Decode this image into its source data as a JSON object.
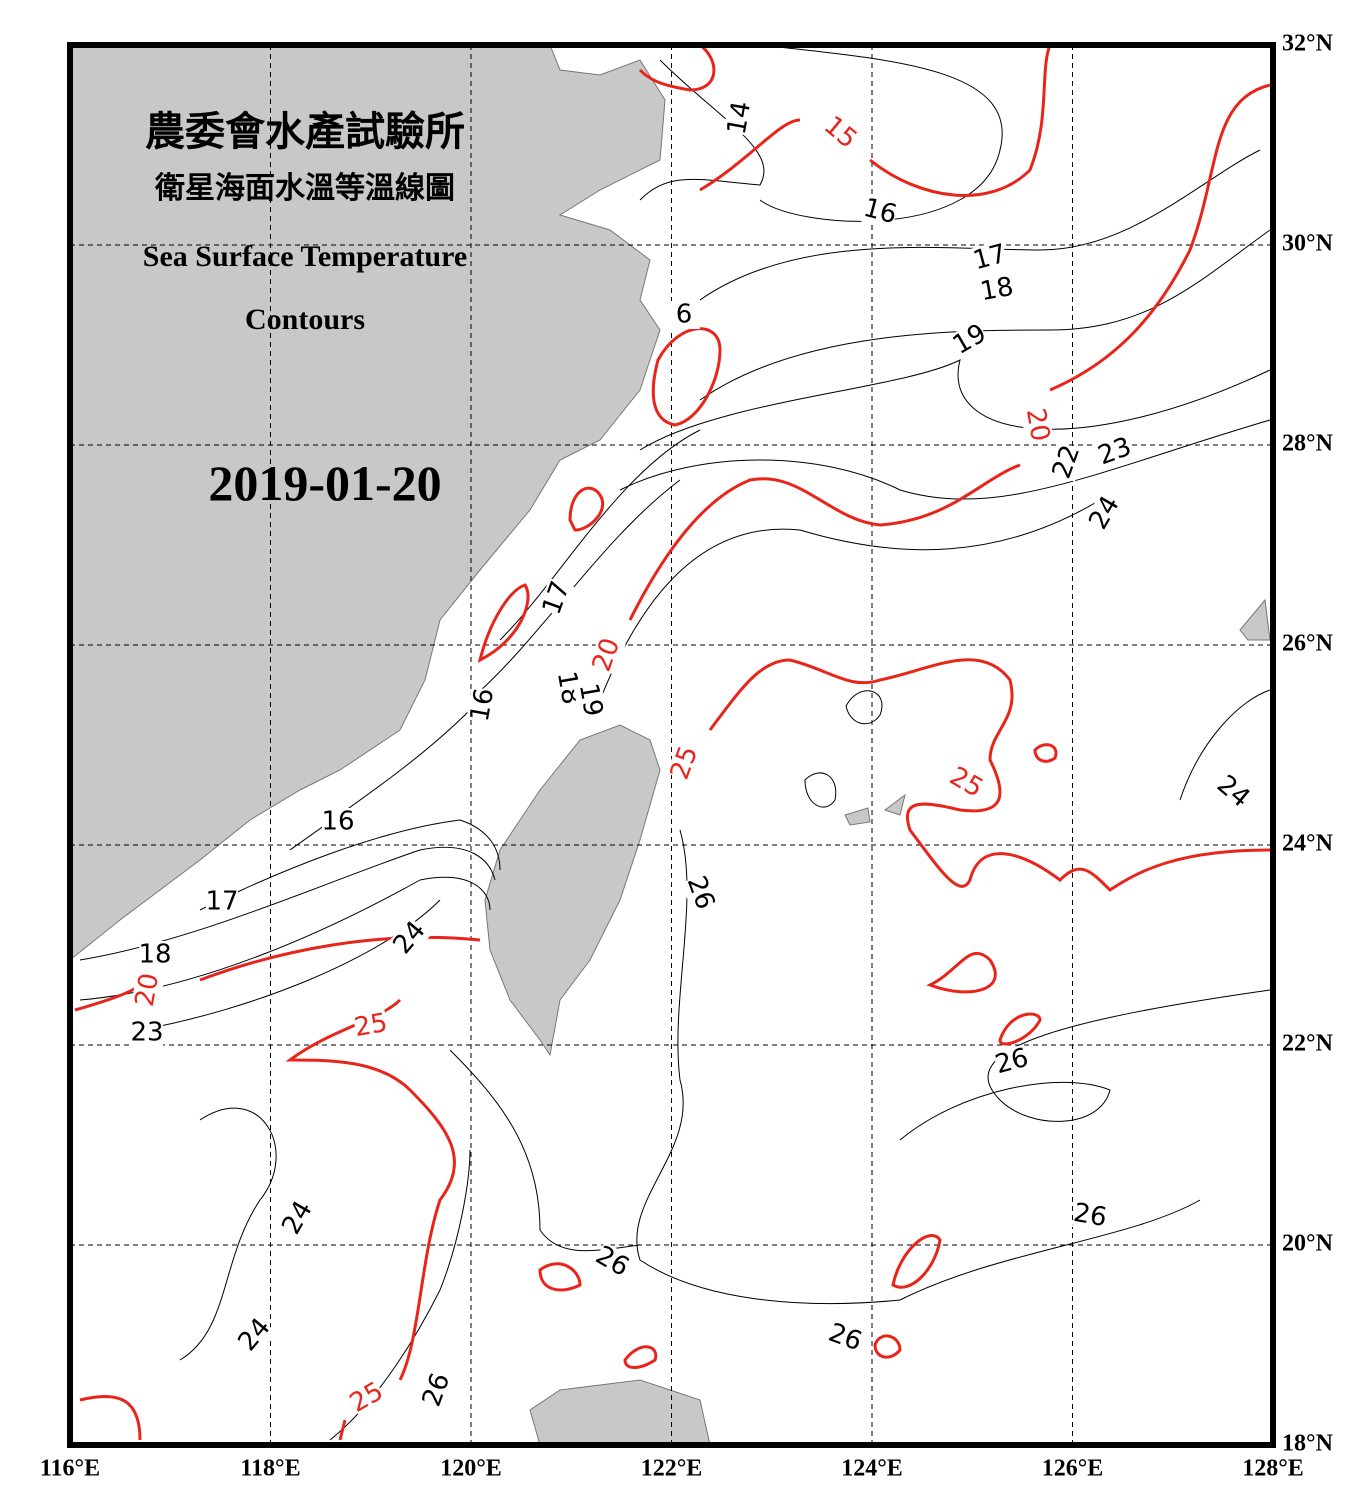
{
  "map": {
    "title_zh": "農委會水產試驗所",
    "subtitle_zh": "衛星海面水溫等溫線圖",
    "title_en_1": "Sea Surface Temperature",
    "title_en_2": "Contours",
    "date": "2019-01-20",
    "xlim": [
      116,
      128
    ],
    "xticks": [
      {
        "value": 116,
        "label": "116°E"
      },
      {
        "value": 118,
        "label": "118°E"
      },
      {
        "value": 120,
        "label": "120°E"
      },
      {
        "value": 122,
        "label": "122°E"
      },
      {
        "value": 124,
        "label": "124°E"
      },
      {
        "value": 126,
        "label": "126°E"
      },
      {
        "value": 128,
        "label": "128°E"
      }
    ],
    "ylim": [
      18,
      32
    ],
    "yticks": [
      {
        "value": 18,
        "label": "18°N"
      },
      {
        "value": 20,
        "label": "20°N"
      },
      {
        "value": 22,
        "label": "22°N"
      },
      {
        "value": 24,
        "label": "24°N"
      },
      {
        "value": 26,
        "label": "26°N"
      },
      {
        "value": 28,
        "label": "28°N"
      },
      {
        "value": 30,
        "label": "30°N"
      },
      {
        "value": 32,
        "label": "32°N"
      }
    ],
    "grid": true,
    "contour_color": "#000000",
    "major_contour_color": "#e8251a",
    "contour_labels": [
      "14",
      "16",
      "17",
      "18",
      "19",
      "22",
      "23",
      "24",
      "6",
      "17",
      "18",
      "19",
      "16",
      "16",
      "17",
      "18",
      "24",
      "23",
      "26",
      "24",
      "26",
      "26",
      "26",
      "26",
      "24",
      "24",
      "26"
    ],
    "major_contour_labels": [
      "15",
      "20",
      "20",
      "25",
      "25",
      "25",
      "25",
      "20"
    ]
  }
}
